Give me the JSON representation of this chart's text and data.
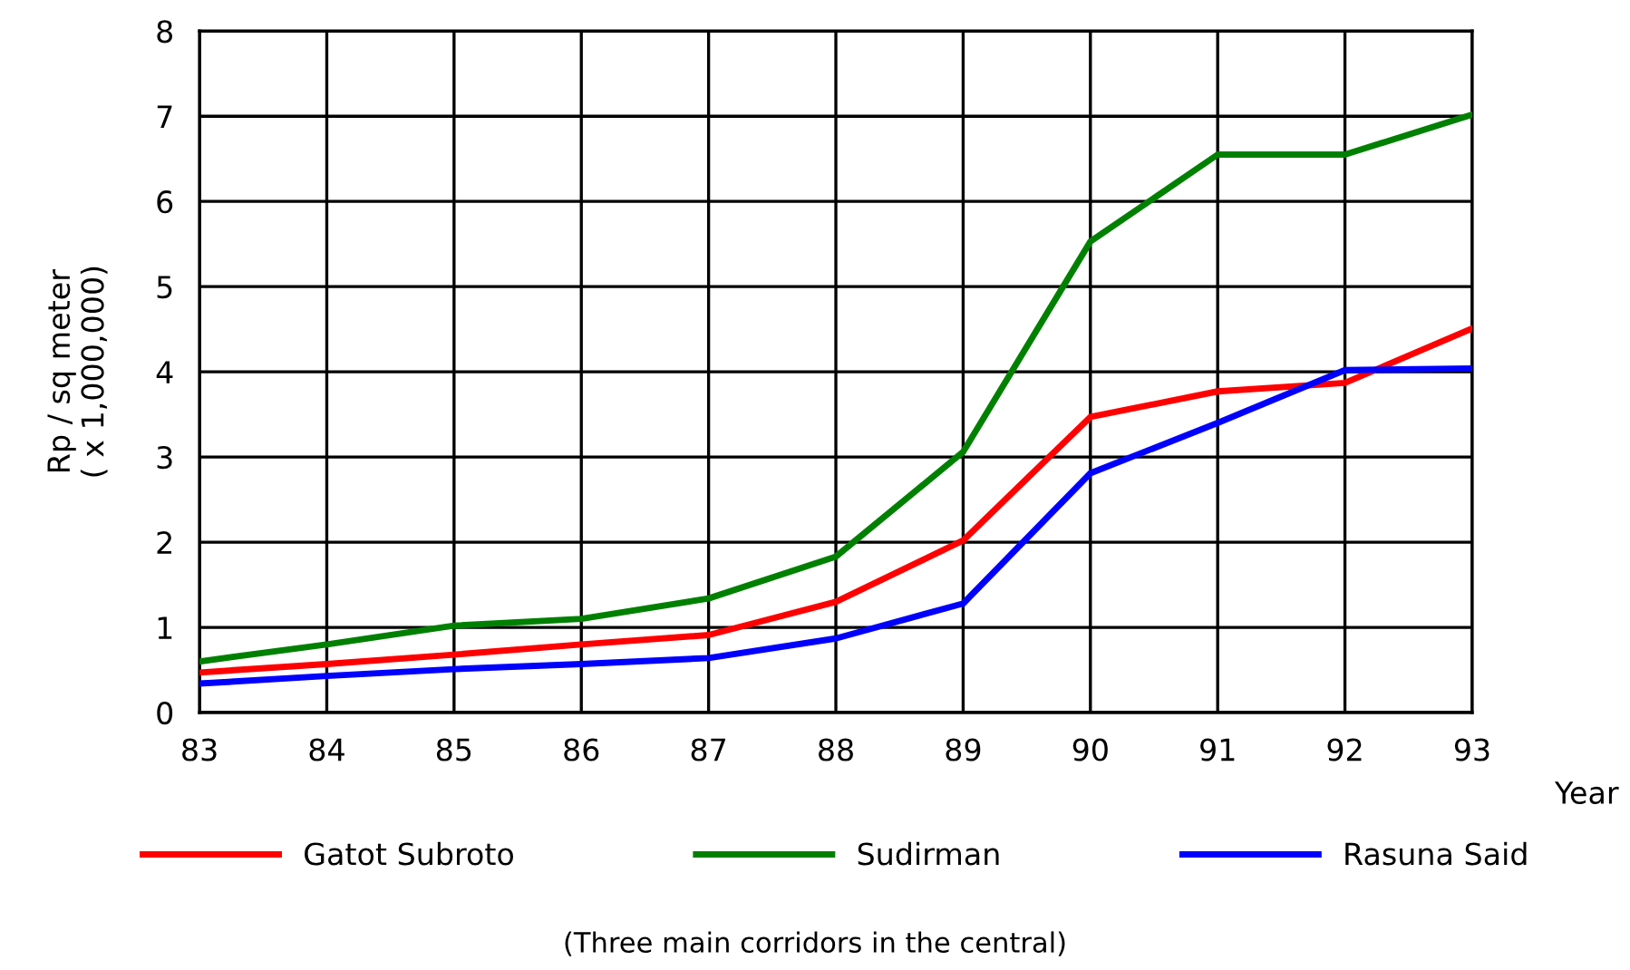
{
  "chart_data": {
    "type": "line",
    "xlabel": "Year",
    "ylabel": "Rp / sq meter\n( x 1,000,000)",
    "x": [
      83,
      84,
      85,
      86,
      87,
      88,
      89,
      90,
      91,
      92,
      93
    ],
    "series": [
      {
        "name": "Gatot Subroto",
        "color": "#ff0000",
        "values": [
          0.47,
          0.57,
          0.68,
          0.8,
          0.91,
          1.3,
          2.02,
          3.47,
          3.77,
          3.87,
          4.51
        ]
      },
      {
        "name": "Sudirman",
        "color": "#008000",
        "values": [
          0.6,
          0.8,
          1.02,
          1.1,
          1.34,
          1.83,
          3.06,
          5.53,
          6.55,
          6.55,
          7.02
        ]
      },
      {
        "name": "Rasuna Said",
        "color": "#0000ff",
        "values": [
          0.34,
          0.43,
          0.51,
          0.57,
          0.64,
          0.87,
          1.28,
          2.81,
          3.4,
          4.02,
          4.04
        ]
      }
    ],
    "xlim": [
      83,
      93
    ],
    "xticks": [
      83,
      84,
      85,
      86,
      87,
      88,
      89,
      90,
      91,
      92,
      93
    ],
    "ylim": [
      0,
      8
    ],
    "yticks": [
      0,
      1,
      2,
      3,
      4,
      5,
      6,
      7,
      8
    ],
    "grid": true,
    "legend": "bottom",
    "marker": "none",
    "line_style": "solid",
    "annotations": [
      "(Three main corridors in the central)"
    ]
  }
}
